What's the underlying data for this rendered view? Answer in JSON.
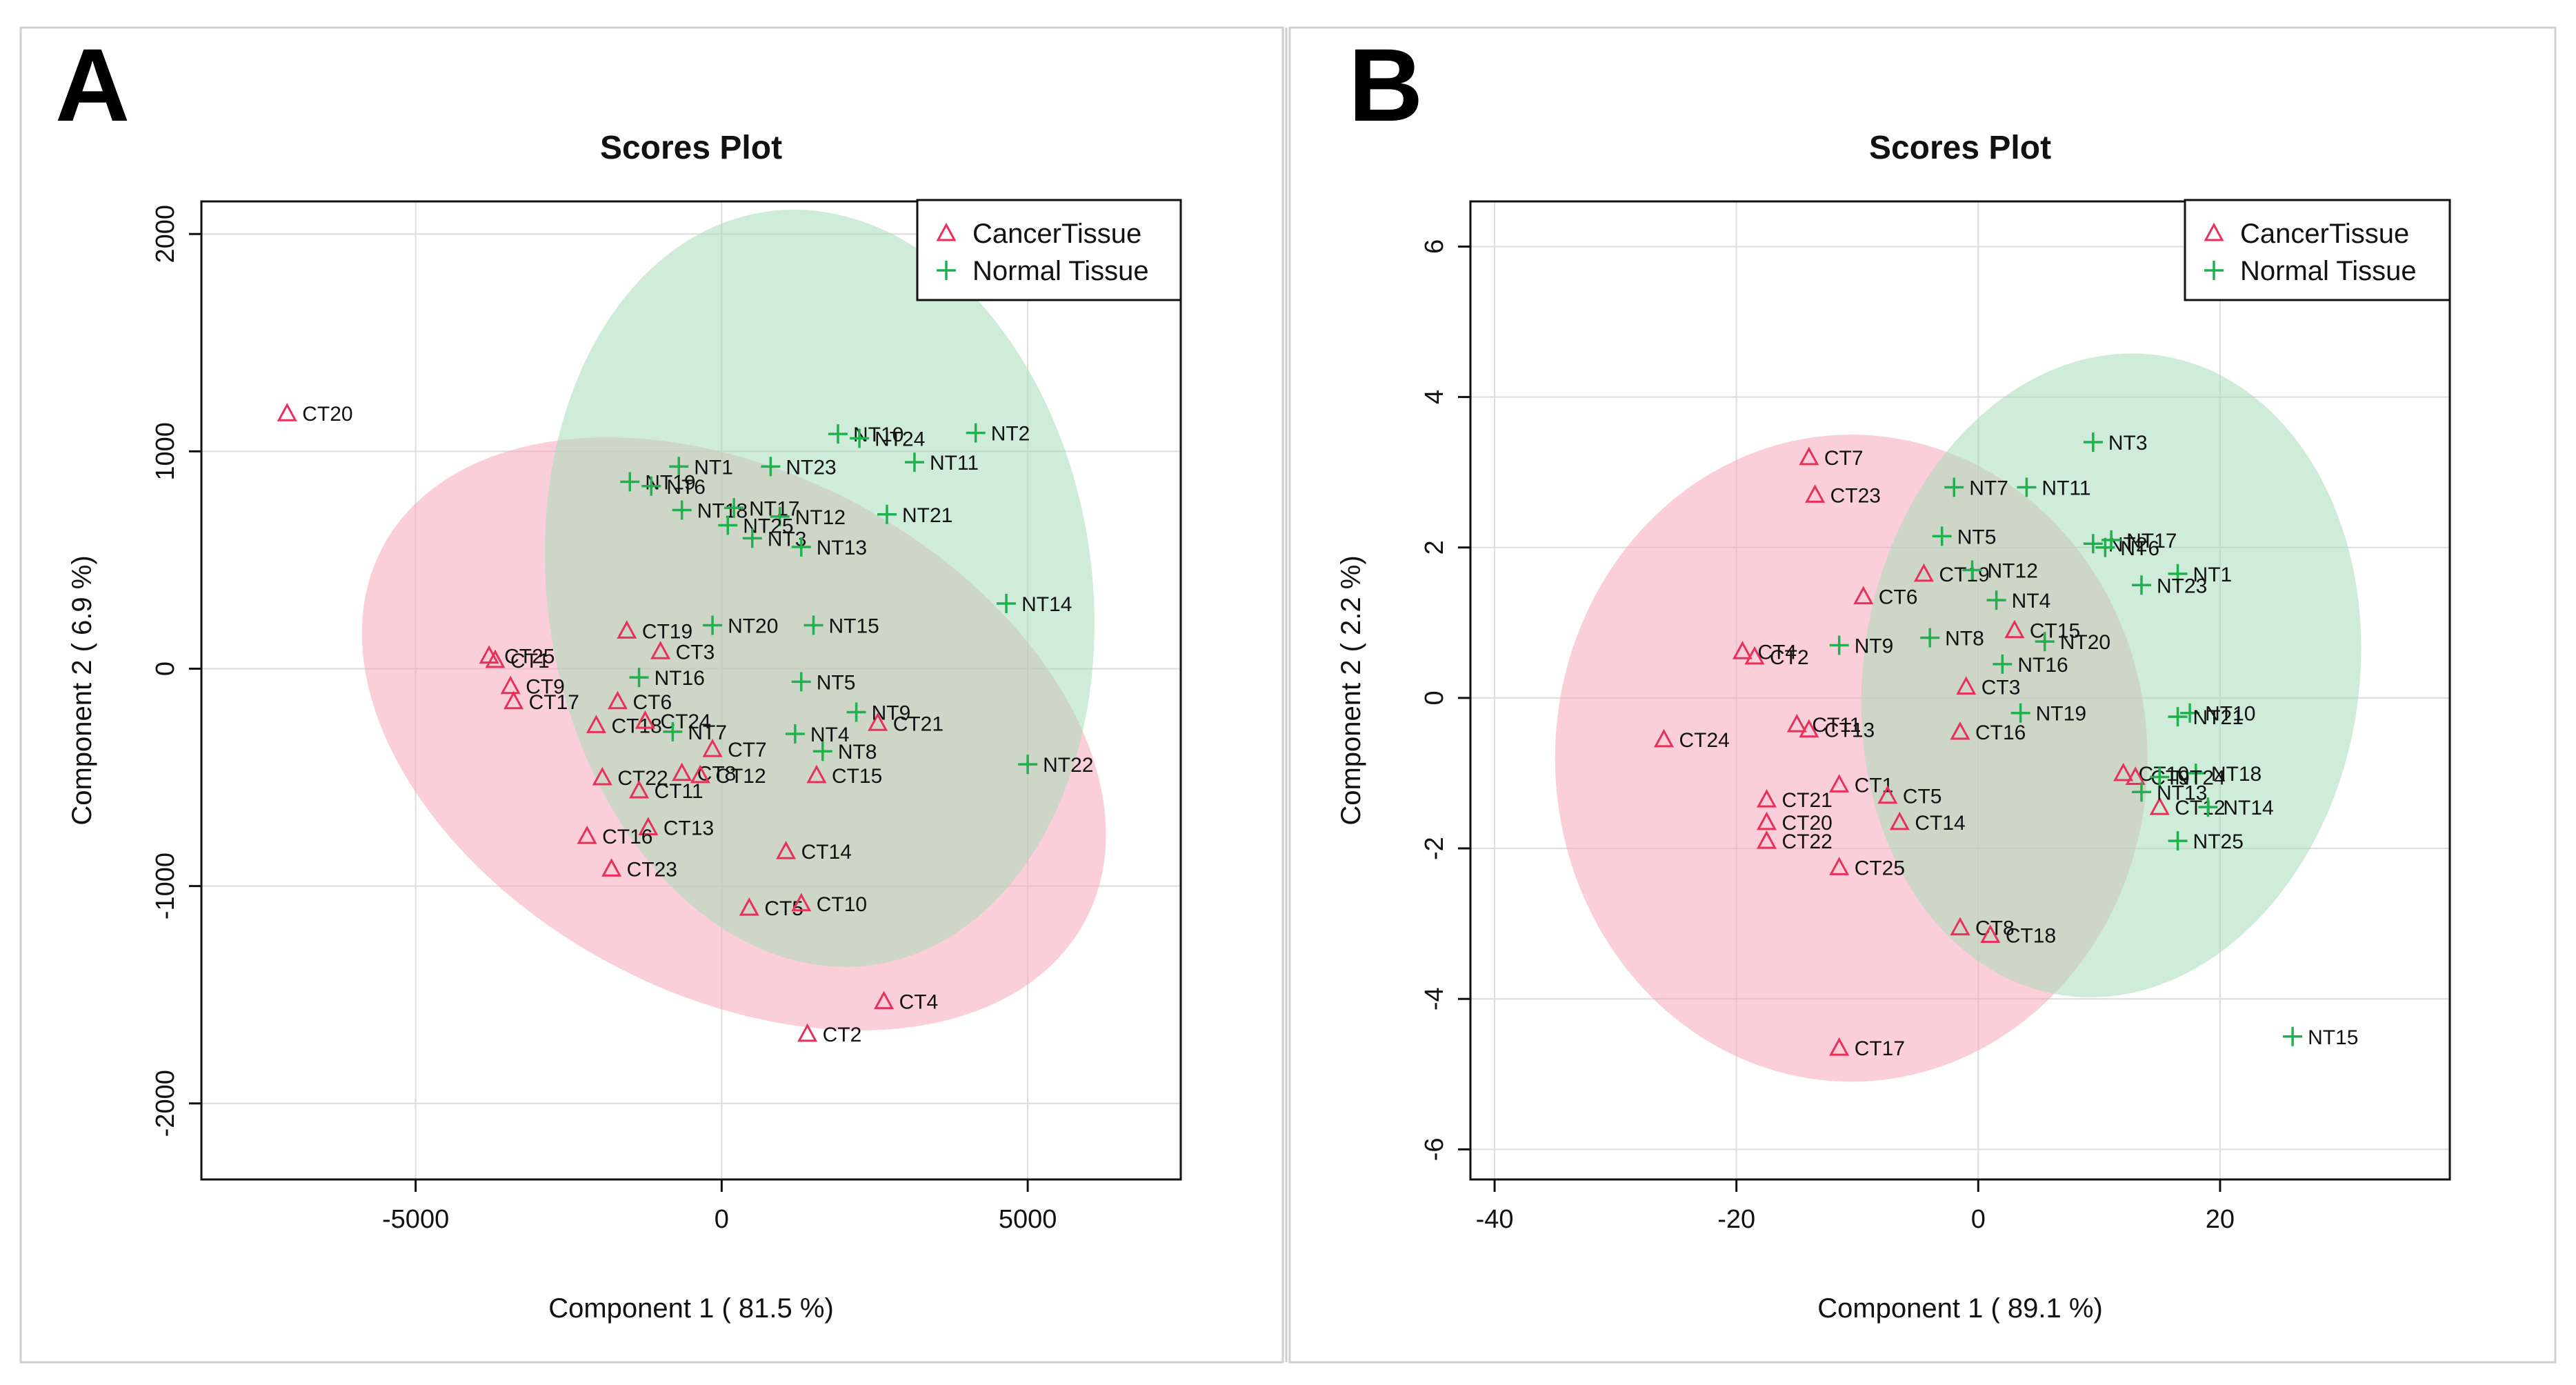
{
  "chart_data": [
    {
      "panel_label": "A",
      "type": "scatter",
      "title": "Scores Plot",
      "xlabel": "Component 1 ( 81.5 %)",
      "ylabel": "Component 2 ( 6.9 %)",
      "xlim": [
        -8500,
        7500
      ],
      "ylim": [
        -2350,
        2150
      ],
      "xticks": [
        -5000,
        0,
        5000
      ],
      "xtick_labels": [
        "-5000",
        "0",
        "5000"
      ],
      "yticks": [
        -2000,
        -1000,
        0,
        1000,
        2000
      ],
      "ytick_labels": [
        "-2000",
        "-1000",
        "0",
        "1000",
        "2000"
      ],
      "grid": true,
      "legend_position": "top-right",
      "series": [
        {
          "name": "CancerTissue",
          "color": "#e8305a",
          "fill": "#f5a8bc",
          "marker": "triangle",
          "ellipse": {
            "cx": 200,
            "cy": -300,
            "rx": 6500,
            "ry": 1200,
            "angle_deg": -28
          },
          "points": [
            {
              "label": "CT20",
              "x": -7100,
              "y": 1175
            },
            {
              "label": "CT25",
              "x": -3800,
              "y": 60
            },
            {
              "label": "CT1",
              "x": -3700,
              "y": 40
            },
            {
              "label": "CT9",
              "x": -3450,
              "y": -80
            },
            {
              "label": "CT17",
              "x": -3400,
              "y": -150
            },
            {
              "label": "CT19",
              "x": -1550,
              "y": 175
            },
            {
              "label": "CT3",
              "x": -1000,
              "y": 80
            },
            {
              "label": "CT6",
              "x": -1700,
              "y": -150
            },
            {
              "label": "CT18",
              "x": -2050,
              "y": -260
            },
            {
              "label": "CT24",
              "x": -1250,
              "y": -240
            },
            {
              "label": "CT7",
              "x": -150,
              "y": -370
            },
            {
              "label": "CT22",
              "x": -1950,
              "y": -500
            },
            {
              "label": "CT8",
              "x": -650,
              "y": -480
            },
            {
              "label": "CT12",
              "x": -350,
              "y": -490
            },
            {
              "label": "CT11",
              "x": -1350,
              "y": -560
            },
            {
              "label": "CT15",
              "x": 1550,
              "y": -490
            },
            {
              "label": "CT13",
              "x": -1200,
              "y": -730
            },
            {
              "label": "CT16",
              "x": -2200,
              "y": -770
            },
            {
              "label": "CT23",
              "x": -1800,
              "y": -920
            },
            {
              "label": "CT14",
              "x": 1050,
              "y": -840
            },
            {
              "label": "CT5",
              "x": 450,
              "y": -1100
            },
            {
              "label": "CT10",
              "x": 1300,
              "y": -1080
            },
            {
              "label": "CT4",
              "x": 2650,
              "y": -1530
            },
            {
              "label": "CT2",
              "x": 1400,
              "y": -1680
            },
            {
              "label": "CT21",
              "x": 2550,
              "y": -250
            }
          ]
        },
        {
          "name": "Normal Tissue",
          "color": "#20b050",
          "fill": "#a8dcb8",
          "marker": "plus",
          "ellipse": {
            "cx": 1600,
            "cy": 370,
            "rx": 4450,
            "ry": 1750,
            "angle_deg": 8
          },
          "points": [
            {
              "label": "NT10",
              "x": 1900,
              "y": 1080
            },
            {
              "label": "NT24",
              "x": 2250,
              "y": 1060
            },
            {
              "label": "NT2",
              "x": 4150,
              "y": 1085
            },
            {
              "label": "NT11",
              "x": 3150,
              "y": 950
            },
            {
              "label": "NT1",
              "x": -700,
              "y": 930
            },
            {
              "label": "NT23",
              "x": 800,
              "y": 930
            },
            {
              "label": "NT19",
              "x": -1500,
              "y": 860
            },
            {
              "label": "NT6",
              "x": -1150,
              "y": 840
            },
            {
              "label": "NT18",
              "x": -650,
              "y": 730
            },
            {
              "label": "NT17",
              "x": 200,
              "y": 740
            },
            {
              "label": "NT12",
              "x": 950,
              "y": 700
            },
            {
              "label": "NT25",
              "x": 100,
              "y": 660
            },
            {
              "label": "NT3",
              "x": 500,
              "y": 600
            },
            {
              "label": "NT13",
              "x": 1300,
              "y": 560
            },
            {
              "label": "NT21",
              "x": 2700,
              "y": 710
            },
            {
              "label": "NT14",
              "x": 4650,
              "y": 300
            },
            {
              "label": "NT20",
              "x": -150,
              "y": 200
            },
            {
              "label": "NT15",
              "x": 1500,
              "y": 200
            },
            {
              "label": "NT16",
              "x": -1350,
              "y": -40
            },
            {
              "label": "NT5",
              "x": 1300,
              "y": -60
            },
            {
              "label": "NT9",
              "x": 2200,
              "y": -200
            },
            {
              "label": "NT7",
              "x": -800,
              "y": -290
            },
            {
              "label": "NT4",
              "x": 1200,
              "y": -300
            },
            {
              "label": "NT8",
              "x": 1650,
              "y": -380
            },
            {
              "label": "NT22",
              "x": 5000,
              "y": -440
            }
          ]
        }
      ]
    },
    {
      "panel_label": "B",
      "type": "scatter",
      "title": "Scores Plot",
      "xlabel": "Component 1 ( 89.1 %)",
      "ylabel": "Component 2 ( 2.2 %)",
      "xlim": [
        -42,
        39
      ],
      "ylim": [
        -6.4,
        6.6
      ],
      "xticks": [
        -40,
        -20,
        0,
        20
      ],
      "xtick_labels": [
        "-40",
        "-20",
        "0",
        "20"
      ],
      "yticks": [
        -6,
        -4,
        -2,
        0,
        2,
        4,
        6
      ],
      "ytick_labels": [
        "-6",
        "-4",
        "-2",
        "0",
        "2",
        "4",
        "6"
      ],
      "grid": true,
      "legend_position": "top-right",
      "series": [
        {
          "name": "CancerTissue",
          "color": "#e8305a",
          "fill": "#f5a8bc",
          "marker": "triangle",
          "ellipse": {
            "cx": -10.5,
            "cy": -0.8,
            "rx": 24.5,
            "ry": 4.3,
            "angle_deg": 0
          },
          "points": [
            {
              "label": "CT7",
              "x": -14,
              "y": 3.2
            },
            {
              "label": "CT23",
              "x": -13.5,
              "y": 2.7
            },
            {
              "label": "CT19",
              "x": -4.5,
              "y": 1.65
            },
            {
              "label": "CT6",
              "x": -9.5,
              "y": 1.35
            },
            {
              "label": "CT4",
              "x": -19.5,
              "y": 0.62
            },
            {
              "label": "CT2",
              "x": -18.5,
              "y": 0.55
            },
            {
              "label": "CT15",
              "x": 3,
              "y": 0.9
            },
            {
              "label": "CT3",
              "x": -1,
              "y": 0.15
            },
            {
              "label": "CT24",
              "x": -26,
              "y": -0.55
            },
            {
              "label": "CT11",
              "x": -15,
              "y": -0.35
            },
            {
              "label": "CT13",
              "x": -14,
              "y": -0.42
            },
            {
              "label": "CT16",
              "x": -1.5,
              "y": -0.45
            },
            {
              "label": "CT1",
              "x": -11.5,
              "y": -1.15
            },
            {
              "label": "CT21",
              "x": -17.5,
              "y": -1.35
            },
            {
              "label": "CT5",
              "x": -7.5,
              "y": -1.3
            },
            {
              "label": "CT20",
              "x": -17.5,
              "y": -1.65
            },
            {
              "label": "CT14",
              "x": -6.5,
              "y": -1.65
            },
            {
              "label": "CT22",
              "x": -17.5,
              "y": -1.9
            },
            {
              "label": "CT25",
              "x": -11.5,
              "y": -2.25
            },
            {
              "label": "CT8",
              "x": -1.5,
              "y": -3.05
            },
            {
              "label": "CT18",
              "x": 1,
              "y": -3.15
            },
            {
              "label": "CT17",
              "x": -11.5,
              "y": -4.65
            },
            {
              "label": "CT10",
              "x": 12,
              "y": -1.0
            },
            {
              "label": "CT12",
              "x": 15,
              "y": -1.45
            },
            {
              "label": "CT9",
              "x": 13,
              "y": -1.05
            }
          ]
        },
        {
          "name": "Normal Tissue",
          "color": "#20b050",
          "fill": "#a8dcb8",
          "marker": "plus",
          "ellipse": {
            "cx": 11,
            "cy": 0.3,
            "rx": 20.5,
            "ry": 4.3,
            "angle_deg": -9
          },
          "points": [
            {
              "label": "NT3",
              "x": 9.5,
              "y": 3.4
            },
            {
              "label": "NT7",
              "x": -2,
              "y": 2.8
            },
            {
              "label": "NT11",
              "x": 4,
              "y": 2.8
            },
            {
              "label": "NT5",
              "x": -3,
              "y": 2.15
            },
            {
              "label": "NT2",
              "x": 9.5,
              "y": 2.05
            },
            {
              "label": "NT17",
              "x": 11,
              "y": 2.1
            },
            {
              "label": "NT6",
              "x": 10.5,
              "y": 2.0
            },
            {
              "label": "NT12",
              "x": -0.5,
              "y": 1.7
            },
            {
              "label": "NT1",
              "x": 16.5,
              "y": 1.65
            },
            {
              "label": "NT23",
              "x": 13.5,
              "y": 1.5
            },
            {
              "label": "NT4",
              "x": 1.5,
              "y": 1.3
            },
            {
              "label": "NT20",
              "x": 5.5,
              "y": 0.75
            },
            {
              "label": "NT9",
              "x": -11.5,
              "y": 0.7
            },
            {
              "label": "NT8",
              "x": -4,
              "y": 0.8
            },
            {
              "label": "NT16",
              "x": 2,
              "y": 0.45
            },
            {
              "label": "NT19",
              "x": 3.5,
              "y": -0.2
            },
            {
              "label": "NT10",
              "x": 17.5,
              "y": -0.2
            },
            {
              "label": "NT21",
              "x": 16.5,
              "y": -0.25
            },
            {
              "label": "NT18",
              "x": 18,
              "y": -1.0
            },
            {
              "label": "NT24",
              "x": 15,
              "y": -1.05
            },
            {
              "label": "NT13",
              "x": 13.5,
              "y": -1.25
            },
            {
              "label": "NT14",
              "x": 19,
              "y": -1.45
            },
            {
              "label": "NT25",
              "x": 16.5,
              "y": -1.9
            },
            {
              "label": "NT15",
              "x": 26,
              "y": -4.5
            }
          ]
        }
      ]
    }
  ]
}
